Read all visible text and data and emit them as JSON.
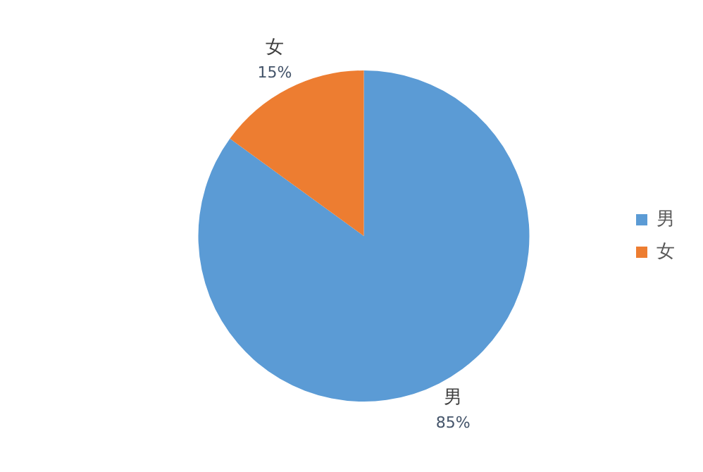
{
  "chart_data": {
    "type": "pie",
    "categories": [
      "男",
      "女"
    ],
    "values": [
      85,
      15
    ],
    "colors": [
      "#5b9bd5",
      "#ed7d31"
    ],
    "value_labels": [
      "85%",
      "15%"
    ],
    "legend": "right"
  }
}
